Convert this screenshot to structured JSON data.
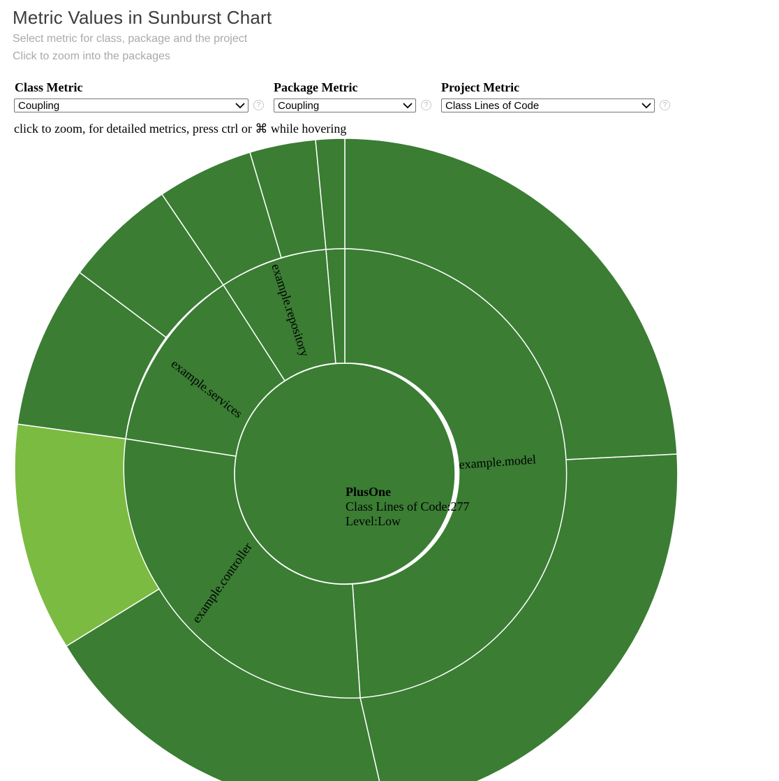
{
  "header": {
    "title": "Metric Values in Sunburst Chart",
    "subtitle_1": "Select metric for class, package and the project",
    "subtitle_2": "Click to zoom into the packages"
  },
  "controls": {
    "class_metric": {
      "label": "Class Metric",
      "value": "Coupling",
      "help": "?"
    },
    "package_metric": {
      "label": "Package Metric",
      "value": "Coupling",
      "help": "?"
    },
    "project_metric": {
      "label": "Project Metric",
      "value": "Class Lines of Code",
      "help": "?"
    }
  },
  "hint": "click to zoom, for detailed metrics, press ctrl or ⌘ while hovering",
  "center": {
    "name": "PlusOne",
    "metric_line": "Class Lines of Code:277",
    "level_line": "Level:Low"
  },
  "colors": {
    "dark_green": "#3a7d33",
    "light_green": "#7cbb41",
    "separator": "#ffffff"
  },
  "packages": [
    {
      "label": "example.model"
    },
    {
      "label": "example.controller"
    },
    {
      "label": "example.services"
    },
    {
      "label": "example.repository"
    },
    {
      "label": ""
    }
  ]
}
